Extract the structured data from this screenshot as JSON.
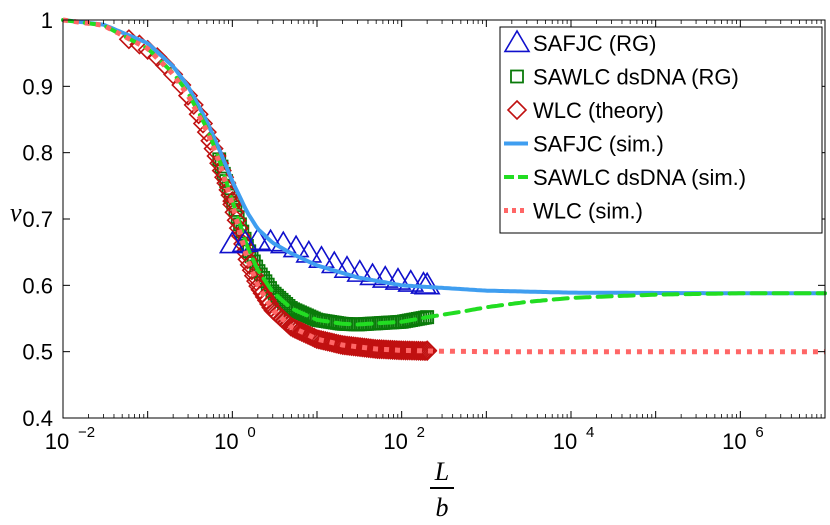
{
  "chart_data": {
    "type": "line",
    "title": "",
    "xlabel": {
      "numerator": "L",
      "denominator": "b"
    },
    "ylabel": "ν",
    "xscale": "log",
    "xlim": [
      0.01,
      10000000
    ],
    "ylim": [
      0.4,
      1.0
    ],
    "grid": false,
    "legend_position": "top-right",
    "x_ticks": [
      {
        "base": "10",
        "exp": "−2",
        "value": 0.01
      },
      {
        "base": "10",
        "exp": "0",
        "value": 1
      },
      {
        "base": "10",
        "exp": "2",
        "value": 100
      },
      {
        "base": "10",
        "exp": "4",
        "value": 10000
      },
      {
        "base": "10",
        "exp": "6",
        "value": 1000000
      }
    ],
    "y_ticks": [
      "0.4",
      "0.5",
      "0.6",
      "0.7",
      "0.8",
      "0.9",
      "1"
    ],
    "series": [
      {
        "name": "SAFJC (RG)",
        "kind": "markers",
        "marker": "triangle",
        "color": "#1010cc",
        "x": [
          1,
          1.41,
          2,
          2.83,
          4,
          5.66,
          8,
          11.3,
          16,
          22.6,
          32,
          45.3,
          64,
          90.5,
          128,
          181,
          200
        ],
        "y": [
          0.662,
          0.664,
          0.667,
          0.665,
          0.662,
          0.656,
          0.648,
          0.64,
          0.632,
          0.625,
          0.619,
          0.614,
          0.61,
          0.607,
          0.604,
          0.601,
          0.6
        ]
      },
      {
        "name": "SAWLC dsDNA (RG)",
        "kind": "markers",
        "marker": "square",
        "color": "#0a7a0a",
        "x": [
          200
        ],
        "y": [
          0.552
        ]
      },
      {
        "name": "WLC (theory)",
        "kind": "markers",
        "marker": "diamond",
        "color": "#c01010",
        "x": [
          0.06,
          0.08,
          0.1,
          0.13,
          0.16,
          0.2,
          0.25,
          0.3,
          0.35,
          0.4,
          0.45,
          0.5,
          0.55,
          0.6,
          0.65,
          0.7,
          0.75,
          0.8,
          0.85,
          0.9,
          0.95,
          1.0,
          200
        ],
        "y": [
          0.971,
          0.963,
          0.955,
          0.944,
          0.932,
          0.918,
          0.902,
          0.886,
          0.872,
          0.858,
          0.844,
          0.831,
          0.818,
          0.806,
          0.795,
          0.784,
          0.773,
          0.763,
          0.754,
          0.744,
          0.736,
          0.727,
          0.502
        ]
      },
      {
        "name": "SAFJC (sim.)",
        "kind": "line",
        "style": "solid",
        "color": "#3f9ef0",
        "x": [
          0.01,
          0.03,
          0.1,
          0.2,
          0.3,
          0.5,
          0.7,
          1,
          1.5,
          2,
          3,
          5,
          10,
          30,
          100,
          1000,
          10000,
          1000000,
          10000000
        ],
        "y": [
          1.0,
          0.993,
          0.965,
          0.93,
          0.9,
          0.847,
          0.805,
          0.757,
          0.71,
          0.685,
          0.664,
          0.648,
          0.63,
          0.612,
          0.6,
          0.592,
          0.589,
          0.588,
          0.588
        ]
      },
      {
        "name": "SAWLC dsDNA (sim.)",
        "kind": "line",
        "style": "dashed",
        "color": "#22dd22",
        "x": [
          0.01,
          0.03,
          0.1,
          0.2,
          0.3,
          0.5,
          0.7,
          1,
          1.5,
          2,
          3,
          5,
          10,
          20,
          30,
          100,
          200,
          500,
          1000,
          3000,
          10000,
          100000,
          1000000,
          10000000
        ],
        "y": [
          1.0,
          0.992,
          0.957,
          0.92,
          0.89,
          0.837,
          0.79,
          0.728,
          0.658,
          0.623,
          0.59,
          0.565,
          0.548,
          0.542,
          0.541,
          0.545,
          0.552,
          0.56,
          0.567,
          0.575,
          0.581,
          0.586,
          0.588,
          0.588
        ]
      },
      {
        "name": "WLC (sim.)",
        "kind": "line",
        "style": "dotted",
        "color": "#ff6666",
        "x": [
          0.01,
          0.03,
          0.1,
          0.2,
          0.3,
          0.5,
          0.7,
          1,
          1.5,
          2,
          3,
          5,
          10,
          20,
          50,
          100,
          200,
          1000,
          10000,
          1000000,
          10000000
        ],
        "y": [
          1.0,
          0.992,
          0.957,
          0.918,
          0.886,
          0.833,
          0.786,
          0.722,
          0.64,
          0.6,
          0.563,
          0.537,
          0.519,
          0.51,
          0.504,
          0.502,
          0.501,
          0.5,
          0.5,
          0.5,
          0.5
        ]
      }
    ]
  }
}
